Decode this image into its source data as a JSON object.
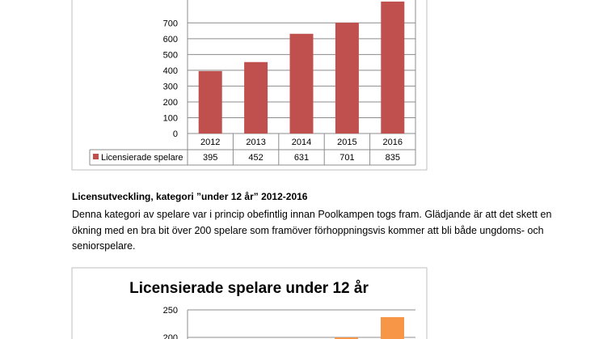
{
  "chart_data": [
    {
      "type": "bar",
      "categories": [
        "2012",
        "2013",
        "2014",
        "2015",
        "2016"
      ],
      "series": [
        {
          "name": "Licensierade spelare",
          "values": [
            395,
            452,
            631,
            701,
            835
          ]
        }
      ],
      "ylim": [
        0,
        800
      ],
      "yticks": [
        "0",
        "100",
        "200",
        "300",
        "400",
        "500",
        "600",
        "700"
      ],
      "data_table": true,
      "grid": true,
      "bar_color": "#c0504d"
    },
    {
      "type": "bar",
      "title": "Licensierade spelare under 12 år",
      "ylim": [
        0,
        250
      ],
      "yticks": [
        "200",
        "250"
      ],
      "grid": true,
      "bar_color": "#f79646"
    }
  ],
  "text": {
    "heading": "Licensutveckling, kategori ”under 12 år” 2012-2016",
    "paragraph": "Denna kategori av spelare var i princip obefintlig innan Poolkampen togs fram. Glädjande är att det skett en ökning med en bra bit över 200 spelare som framöver förhoppningsvis kommer att bli både ungdoms- och seniorspelare."
  }
}
